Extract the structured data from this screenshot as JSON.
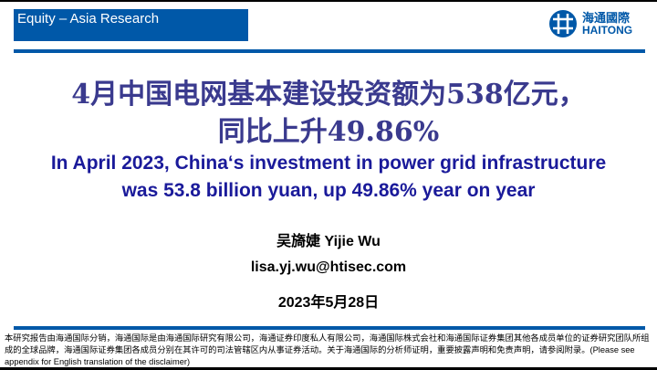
{
  "header": {
    "section_label": "Equity – Asia Research",
    "logo_cn": "海通國際",
    "logo_en": "HAITONG",
    "brand_color": "#0058a8"
  },
  "title_cn": {
    "line1": "4月中国电网基本建设投资额为538亿元，",
    "line2": "同比上升49.86%"
  },
  "title_en": {
    "line1": "In April 2023, China‘s investment in power grid infrastructure",
    "line2": "was 53.8 billion yuan, up 49.86% year on year"
  },
  "author": "吴旖婕 Yijie Wu",
  "email": "lisa.yj.wu@htisec.com",
  "date": "2023年5月28日",
  "disclaimer": {
    "cn": "本研究报告由海通国际分销，海通国际是由海通国际研究有限公司，海通证券印度私人有限公司，海通国际株式会社和海通国际证券集团其他各成员单位的证券研究团队所组成的全球品牌，海通国际证券集团各成员分别在其许可的司法管辖区内从事证券活动。关于海通国际的分析师证明，重要披露声明和免责声明，请参阅附录。",
    "en": "(Please see appendix for English translation of the disclaimer)"
  }
}
